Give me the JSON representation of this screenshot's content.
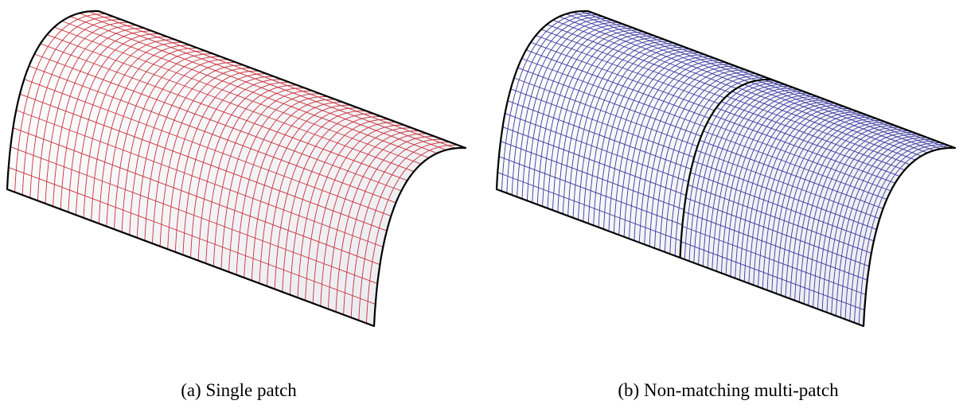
{
  "figure": {
    "panels": [
      {
        "caption": "(a) Single patch",
        "mesh_color": "#c8323c",
        "surface_color": "#e9e9ee",
        "grid_u": 48,
        "grid_v": 16,
        "patches": 1
      },
      {
        "caption": "(b) Non-matching multi-patch",
        "mesh_color": "#3a3aa0",
        "surface_color": "#e9e9f0",
        "grid_u_left": 36,
        "grid_u_right": 40,
        "grid_v": 21,
        "patches": 2
      }
    ]
  }
}
